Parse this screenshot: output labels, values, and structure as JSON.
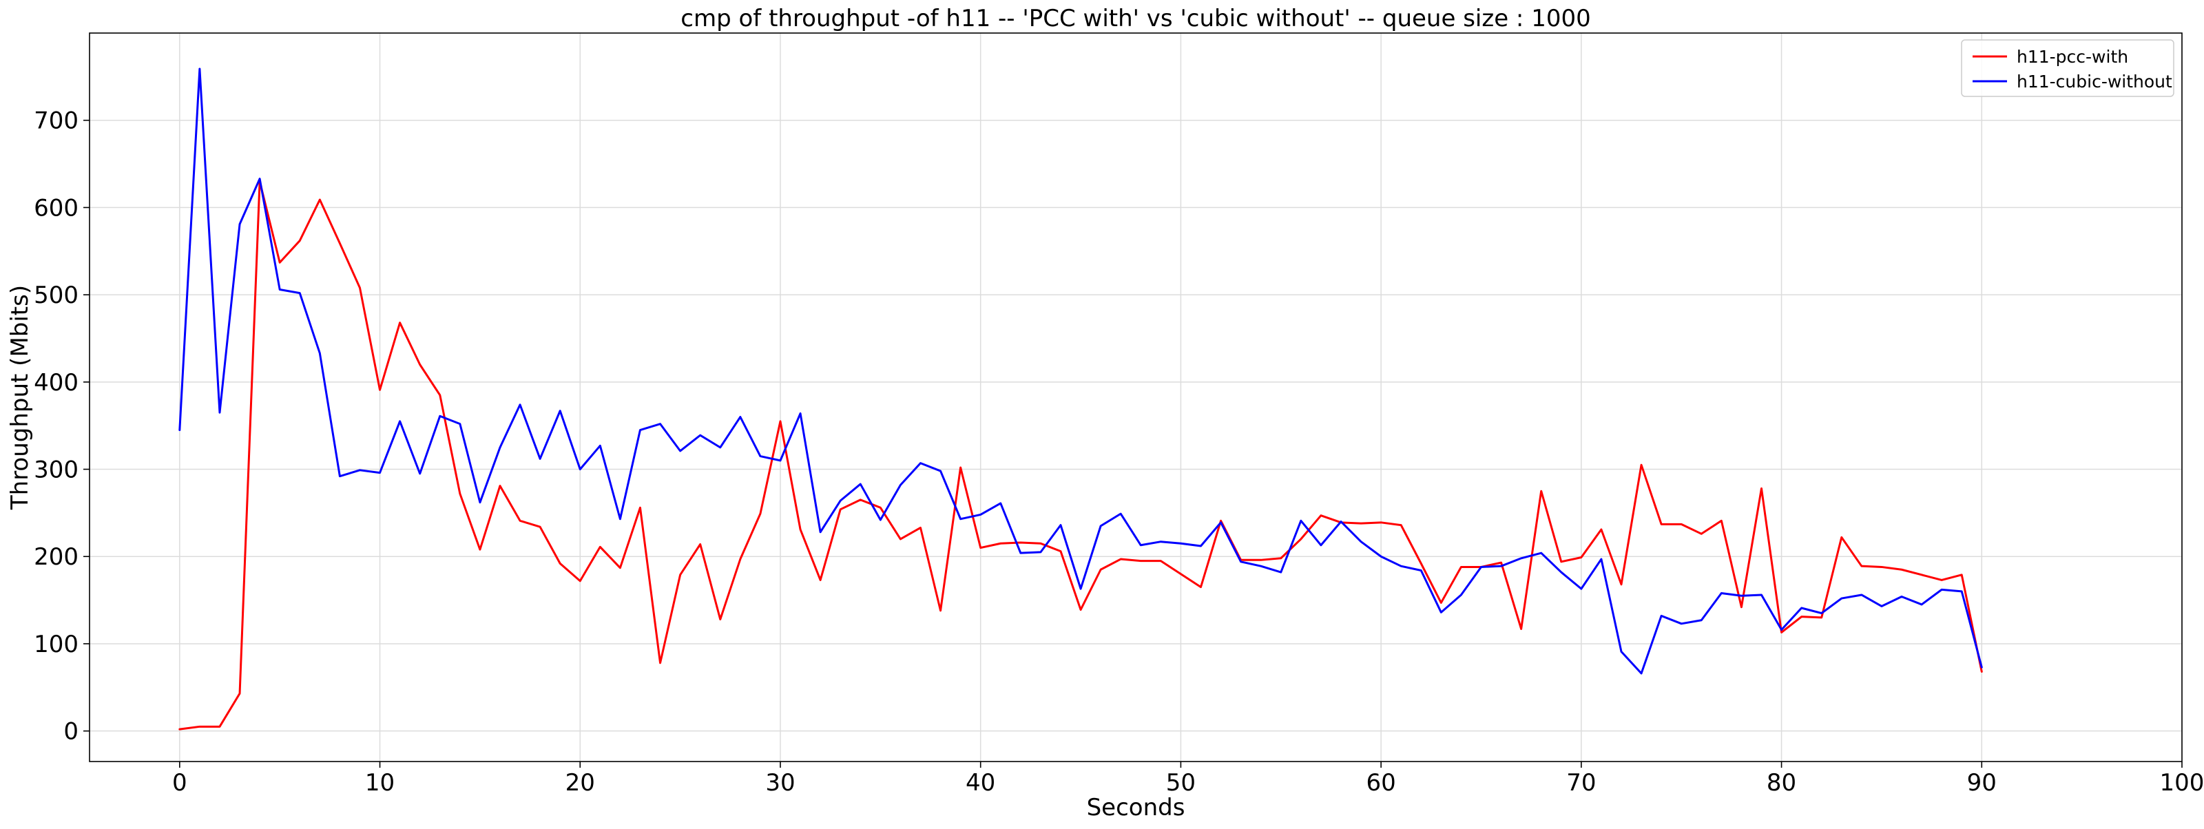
{
  "chart_data": {
    "type": "line",
    "title": "cmp of throughput -of h11 -- 'PCC with' vs 'cubic without' -- queue size : 1000",
    "xlabel": "Seconds",
    "ylabel": "Throughput (Mbits)",
    "xlim": [
      -4.5,
      100
    ],
    "ylim": [
      -35,
      800
    ],
    "x_ticks": [
      0,
      10,
      20,
      30,
      40,
      50,
      60,
      70,
      80,
      90,
      100
    ],
    "y_ticks": [
      0,
      100,
      200,
      300,
      400,
      500,
      600,
      700
    ],
    "grid": true,
    "legend_position": "top-right",
    "x": [
      0,
      1,
      2,
      3,
      4,
      5,
      6,
      7,
      8,
      9,
      10,
      11,
      12,
      13,
      14,
      15,
      16,
      17,
      18,
      19,
      20,
      21,
      22,
      23,
      24,
      25,
      26,
      27,
      28,
      29,
      30,
      31,
      32,
      33,
      34,
      35,
      36,
      37,
      38,
      39,
      40,
      41,
      42,
      43,
      44,
      45,
      46,
      47,
      48,
      49,
      50,
      51,
      52,
      53,
      54,
      55,
      56,
      57,
      58,
      59,
      60,
      61,
      62,
      63,
      64,
      65,
      66,
      67,
      68,
      69,
      70,
      71,
      72,
      73,
      74,
      75,
      76,
      77,
      78,
      79,
      80,
      81,
      82,
      83,
      84,
      85,
      86,
      87,
      88,
      89,
      90
    ],
    "series": [
      {
        "name": "h11-pcc-with",
        "color": "#ff0000",
        "values": [
          2,
          5,
          5,
          43,
          630,
          537,
          562,
          609,
          559,
          508,
          391,
          468,
          420,
          385,
          272,
          208,
          281,
          241,
          234,
          192,
          172,
          211,
          187,
          256,
          78,
          179,
          214,
          128,
          197,
          249,
          355,
          231,
          173,
          254,
          265,
          256,
          220,
          233,
          138,
          302,
          210,
          215,
          216,
          215,
          206,
          139,
          185,
          197,
          195,
          195,
          180,
          165,
          241,
          196,
          196,
          198,
          220,
          247,
          239,
          238,
          239,
          236,
          192,
          147,
          188,
          188,
          193,
          117,
          275,
          194,
          199,
          231,
          168,
          305,
          237,
          237,
          226,
          241,
          142,
          278,
          113,
          131,
          130,
          222,
          189,
          188,
          185,
          179,
          173,
          179,
          68
        ]
      },
      {
        "name": "h11-cubic-without",
        "color": "#0000ff",
        "values": [
          345,
          759,
          365,
          581,
          633,
          506,
          502,
          433,
          292,
          299,
          296,
          355,
          295,
          361,
          352,
          262,
          325,
          374,
          312,
          367,
          300,
          327,
          243,
          345,
          352,
          321,
          339,
          325,
          360,
          315,
          310,
          364,
          228,
          264,
          283,
          242,
          282,
          307,
          298,
          243,
          248,
          261,
          204,
          205,
          236,
          163,
          235,
          249,
          213,
          217,
          215,
          212,
          239,
          194,
          189,
          182,
          241,
          213,
          240,
          217,
          200,
          189,
          184,
          136,
          156,
          188,
          189,
          198,
          204,
          182,
          163,
          197,
          91,
          66,
          132,
          123,
          127,
          158,
          155,
          156,
          116,
          141,
          135,
          152,
          156,
          143,
          154,
          145,
          162,
          160,
          73
        ]
      }
    ]
  }
}
